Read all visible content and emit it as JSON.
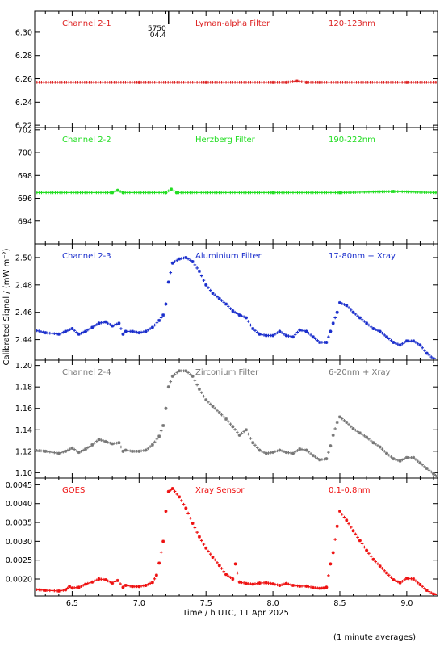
{
  "figure": {
    "ylabel": "Calibrated Signal / (mW m⁻²)",
    "xlabel": "Time / h UTC, 11 Apr 2025",
    "footnote": "(1 minute averages)",
    "marker_annotation": {
      "x": 7.22,
      "lines": [
        "5750",
        "04.4"
      ]
    }
  },
  "chart_data": [
    {
      "type": "scatter",
      "title_left": "Channel 2-1",
      "title_mid": "Lyman-alpha Filter",
      "title_right": "120-123nm",
      "color": "#dd2222",
      "xlim": [
        6.22,
        9.23
      ],
      "ylim": [
        6.218,
        6.318
      ],
      "yticks": [
        "6.22",
        "6.24",
        "6.26",
        "6.28",
        "6.30"
      ],
      "ytick_values": [
        6.22,
        6.24,
        6.26,
        6.28,
        6.3
      ],
      "x": [
        6.22,
        7.0,
        7.5,
        8.0,
        8.1,
        8.18,
        8.25,
        8.35,
        9.0,
        9.23
      ],
      "values": [
        6.257,
        6.257,
        6.257,
        6.257,
        6.257,
        6.258,
        6.257,
        6.257,
        6.257,
        6.257
      ]
    },
    {
      "type": "scatter",
      "title_left": "Channel 2-2",
      "title_mid": "Herzberg Filter",
      "title_right": "190-222nm",
      "color": "#22dd22",
      "xlim": [
        6.22,
        9.23
      ],
      "ylim": [
        692.0,
        702.2
      ],
      "yticks": [
        "694",
        "696",
        "698",
        "700",
        "702"
      ],
      "ytick_values": [
        694,
        696,
        698,
        700,
        702
      ],
      "x": [
        6.22,
        6.8,
        6.84,
        6.88,
        7.2,
        7.24,
        7.28,
        8.0,
        8.5,
        8.9,
        9.23
      ],
      "values": [
        696.5,
        696.5,
        696.7,
        696.5,
        696.5,
        696.8,
        696.5,
        696.5,
        696.5,
        696.6,
        696.5
      ]
    },
    {
      "type": "scatter",
      "title_left": "Channel 2-3",
      "title_mid": "Aluminium Filter",
      "title_right": "17-80nm + Xray",
      "color": "#1a2ecc",
      "xlim": [
        6.22,
        9.23
      ],
      "ylim": [
        2.425,
        2.51
      ],
      "yticks": [
        "2.44",
        "2.46",
        "2.48",
        "2.50"
      ],
      "ytick_values": [
        2.44,
        2.46,
        2.48,
        2.5
      ],
      "x": [
        6.22,
        6.3,
        6.4,
        6.45,
        6.5,
        6.55,
        6.6,
        6.65,
        6.7,
        6.75,
        6.8,
        6.85,
        6.88,
        6.9,
        6.95,
        7.0,
        7.05,
        7.1,
        7.15,
        7.18,
        7.2,
        7.22,
        7.25,
        7.3,
        7.35,
        7.4,
        7.45,
        7.5,
        7.55,
        7.6,
        7.65,
        7.7,
        7.75,
        7.8,
        7.85,
        7.9,
        7.95,
        8.0,
        8.05,
        8.1,
        8.15,
        8.2,
        8.25,
        8.3,
        8.35,
        8.4,
        8.43,
        8.45,
        8.48,
        8.5,
        8.55,
        8.6,
        8.65,
        8.7,
        8.75,
        8.8,
        8.85,
        8.9,
        8.95,
        9.0,
        9.05,
        9.1,
        9.15,
        9.2,
        9.23
      ],
      "values": [
        2.447,
        2.445,
        2.444,
        2.446,
        2.448,
        2.444,
        2.446,
        2.449,
        2.452,
        2.453,
        2.45,
        2.452,
        2.444,
        2.446,
        2.446,
        2.445,
        2.446,
        2.449,
        2.454,
        2.458,
        2.466,
        2.482,
        2.496,
        2.499,
        2.5,
        2.497,
        2.49,
        2.48,
        2.474,
        2.47,
        2.466,
        2.461,
        2.458,
        2.456,
        2.448,
        2.444,
        2.443,
        2.443,
        2.446,
        2.443,
        2.442,
        2.447,
        2.446,
        2.442,
        2.438,
        2.438,
        2.446,
        2.452,
        2.46,
        2.467,
        2.465,
        2.46,
        2.456,
        2.452,
        2.448,
        2.446,
        2.442,
        2.438,
        2.436,
        2.439,
        2.439,
        2.436,
        2.43,
        2.426,
        2.425
      ]
    },
    {
      "type": "scatter",
      "title_left": "Channel 2-4",
      "title_mid": "Zirconium Filter",
      "title_right": "6-20nm + Xray",
      "color": "#777777",
      "xlim": [
        6.22,
        9.23
      ],
      "ylim": [
        1.095,
        1.205
      ],
      "yticks": [
        "1.10",
        "1.12",
        "1.14",
        "1.16",
        "1.18",
        "1.20"
      ],
      "ytick_values": [
        1.1,
        1.12,
        1.14,
        1.16,
        1.18,
        1.2
      ],
      "x": [
        6.22,
        6.3,
        6.4,
        6.45,
        6.5,
        6.55,
        6.6,
        6.65,
        6.7,
        6.75,
        6.8,
        6.85,
        6.88,
        6.9,
        6.95,
        7.0,
        7.05,
        7.1,
        7.15,
        7.18,
        7.2,
        7.22,
        7.25,
        7.3,
        7.35,
        7.4,
        7.45,
        7.5,
        7.55,
        7.6,
        7.65,
        7.7,
        7.75,
        7.8,
        7.85,
        7.9,
        7.95,
        8.0,
        8.05,
        8.1,
        8.15,
        8.2,
        8.25,
        8.3,
        8.35,
        8.4,
        8.43,
        8.45,
        8.48,
        8.5,
        8.55,
        8.6,
        8.65,
        8.7,
        8.75,
        8.8,
        8.85,
        8.9,
        8.95,
        9.0,
        9.05,
        9.1,
        9.15,
        9.2,
        9.23
      ],
      "values": [
        1.121,
        1.12,
        1.118,
        1.12,
        1.123,
        1.119,
        1.122,
        1.126,
        1.131,
        1.129,
        1.127,
        1.128,
        1.12,
        1.121,
        1.12,
        1.12,
        1.121,
        1.126,
        1.134,
        1.144,
        1.16,
        1.18,
        1.19,
        1.195,
        1.195,
        1.19,
        1.178,
        1.168,
        1.162,
        1.156,
        1.15,
        1.143,
        1.135,
        1.14,
        1.128,
        1.121,
        1.118,
        1.119,
        1.121,
        1.119,
        1.118,
        1.122,
        1.121,
        1.116,
        1.112,
        1.113,
        1.125,
        1.135,
        1.147,
        1.152,
        1.147,
        1.141,
        1.137,
        1.133,
        1.128,
        1.124,
        1.118,
        1.113,
        1.111,
        1.114,
        1.114,
        1.109,
        1.104,
        1.099,
        1.096
      ]
    },
    {
      "type": "scatter",
      "title_left": "GOES",
      "title_mid": "Xray Sensor",
      "title_right": "0.1-0.8nm",
      "color": "#ee1111",
      "xlim": [
        6.22,
        9.23
      ],
      "ylim": [
        0.00155,
        0.00468
      ],
      "yticks": [
        "0.0020",
        "0.0025",
        "0.0030",
        "0.0035",
        "0.0040",
        "0.0045"
      ],
      "ytick_values": [
        0.002,
        0.0025,
        0.003,
        0.0035,
        0.004,
        0.0045
      ],
      "x": [
        6.22,
        6.3,
        6.4,
        6.45,
        6.48,
        6.5,
        6.55,
        6.6,
        6.65,
        6.7,
        6.75,
        6.8,
        6.84,
        6.88,
        6.9,
        6.95,
        7.0,
        7.05,
        7.1,
        7.13,
        7.15,
        7.18,
        7.2,
        7.22,
        7.25,
        7.3,
        7.35,
        7.4,
        7.45,
        7.5,
        7.55,
        7.6,
        7.65,
        7.7,
        7.72,
        7.75,
        7.8,
        7.85,
        7.9,
        7.95,
        8.0,
        8.05,
        8.1,
        8.15,
        8.2,
        8.25,
        8.3,
        8.35,
        8.38,
        8.4,
        8.43,
        8.45,
        8.48,
        8.5,
        8.55,
        8.6,
        8.65,
        8.7,
        8.75,
        8.8,
        8.85,
        8.9,
        8.95,
        9.0,
        9.05,
        9.1,
        9.15,
        9.2,
        9.23
      ],
      "values": [
        0.00172,
        0.0017,
        0.00168,
        0.00171,
        0.0018,
        0.00176,
        0.00178,
        0.00186,
        0.00192,
        0.002,
        0.00198,
        0.00189,
        0.00196,
        0.00178,
        0.00183,
        0.0018,
        0.0018,
        0.00183,
        0.00191,
        0.0021,
        0.00242,
        0.003,
        0.0038,
        0.00432,
        0.0044,
        0.00418,
        0.00388,
        0.00348,
        0.00312,
        0.00282,
        0.00258,
        0.00236,
        0.00212,
        0.002,
        0.0024,
        0.00192,
        0.00188,
        0.00186,
        0.00189,
        0.0019,
        0.00187,
        0.00183,
        0.00188,
        0.00183,
        0.00181,
        0.00181,
        0.00177,
        0.00175,
        0.00176,
        0.00178,
        0.0024,
        0.0027,
        0.0034,
        0.0038,
        0.00356,
        0.00328,
        0.00302,
        0.00276,
        0.00252,
        0.00234,
        0.00216,
        0.00198,
        0.0019,
        0.00202,
        0.002,
        0.00185,
        0.0017,
        0.0016,
        0.00157
      ]
    }
  ],
  "xaxis": {
    "ticks": [
      "6.5",
      "7.0",
      "7.5",
      "8.0",
      "8.5",
      "9.0"
    ],
    "tick_values": [
      6.5,
      7.0,
      7.5,
      8.0,
      8.5,
      9.0
    ]
  }
}
